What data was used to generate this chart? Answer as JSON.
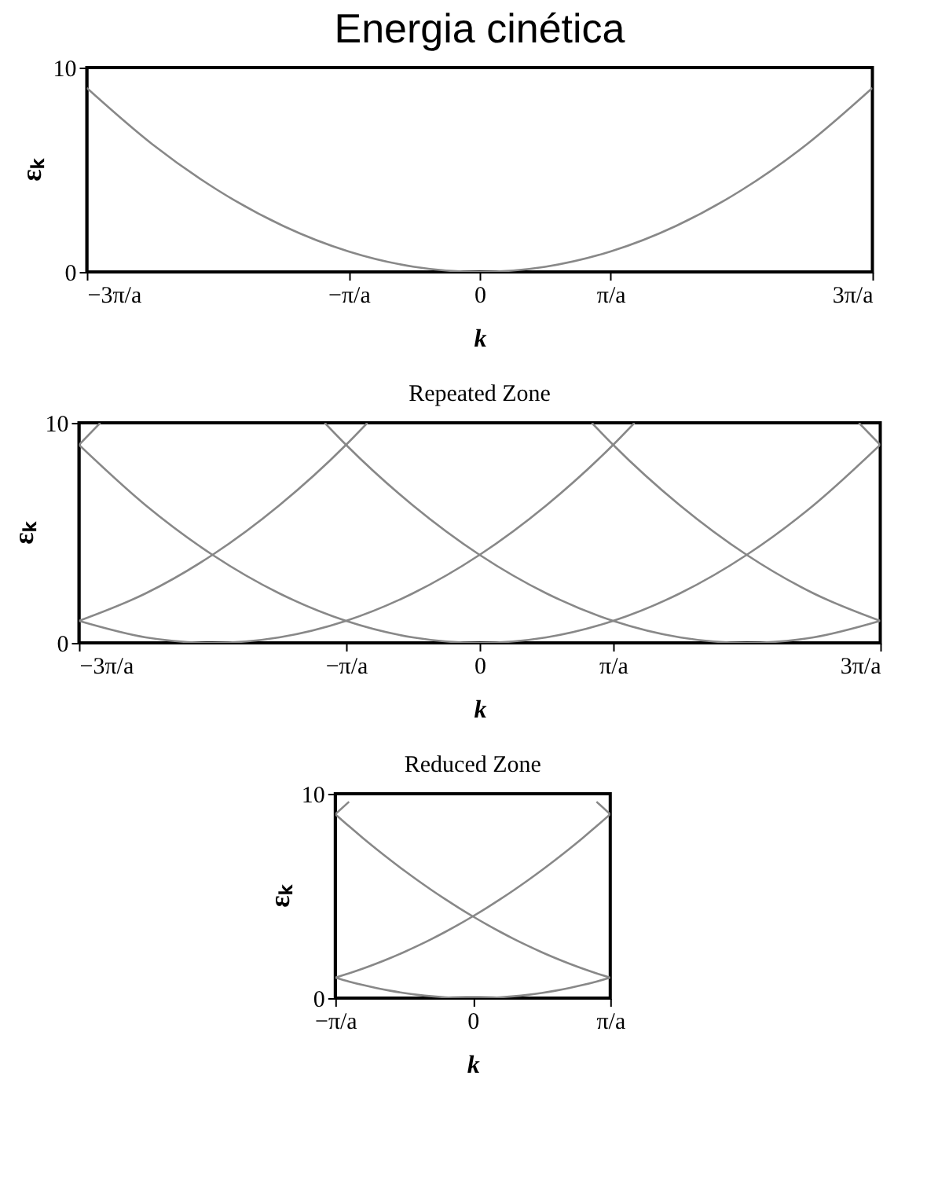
{
  "chart_data": [
    {
      "type": "line",
      "title": "Energia cinética",
      "xlabel": "k",
      "ylabel": "εₖ",
      "xlim": [
        -3,
        3
      ],
      "xticks": [
        {
          "value": -3,
          "label": "−3π/a"
        },
        {
          "value": -1,
          "label": "−π/a"
        },
        0,
        {
          "value": 1,
          "label": "π/a"
        },
        {
          "value": 3,
          "label": "3π/a"
        }
      ],
      "ylim": [
        0,
        10
      ],
      "yticks": [
        0,
        10
      ],
      "line_style": "solid",
      "series": [
        {
          "color": "#888888",
          "x": [
            -3,
            -2.5,
            -2,
            -1.5,
            -1,
            -0.5,
            0,
            0.5,
            1,
            1.5,
            2,
            2.5,
            3
          ],
          "values": [
            9,
            6.25,
            4,
            2.25,
            1,
            0.25,
            0,
            0.25,
            1,
            2.25,
            4,
            6.25,
            9
          ]
        }
      ]
    },
    {
      "type": "line",
      "title": "Repeated Zone",
      "xlabel": "k",
      "ylabel": "εₖ",
      "xlim": [
        -3,
        3
      ],
      "xticks": [
        {
          "value": -3,
          "label": "−3π/a"
        },
        {
          "value": -1,
          "label": "−π/a"
        },
        0,
        {
          "value": 1,
          "label": "π/a"
        },
        {
          "value": 3,
          "label": "3π/a"
        }
      ],
      "ylim": [
        0,
        10
      ],
      "yticks": [
        0,
        10
      ],
      "line_style": "solid",
      "series": [
        {
          "color": "#888888",
          "x": [
            -3,
            -2.84
          ],
          "values": [
            9,
            10
          ]
        },
        {
          "color": "#888888",
          "x": [
            -3,
            -2.5,
            -2,
            -1.5,
            -1,
            -0.84
          ],
          "values": [
            1,
            2.25,
            4,
            6.25,
            9,
            10
          ]
        },
        {
          "color": "#888888",
          "x": [
            -3,
            -2.5,
            -2,
            -1.5,
            -1,
            -0.5,
            0,
            0.5,
            1,
            1.16
          ],
          "values": [
            1,
            0.25,
            0,
            0.25,
            1,
            2.25,
            4,
            6.25,
            9,
            10
          ]
        },
        {
          "color": "#888888",
          "x": [
            -3,
            -2.5,
            -2,
            -1.5,
            -1,
            -0.5,
            0,
            0.5,
            1,
            1.5,
            2,
            2.5,
            3
          ],
          "values": [
            9,
            6.25,
            4,
            2.25,
            1,
            0.25,
            0,
            0.25,
            1,
            2.25,
            4,
            6.25,
            9
          ]
        },
        {
          "color": "#888888",
          "x": [
            -1.16,
            -1,
            -0.5,
            0,
            0.5,
            1,
            1.5,
            2,
            2.5,
            3
          ],
          "values": [
            10,
            9,
            6.25,
            4,
            2.25,
            1,
            0.25,
            0,
            0.25,
            1
          ]
        },
        {
          "color": "#888888",
          "x": [
            0.84,
            1,
            1.5,
            2,
            2.5,
            3
          ],
          "values": [
            10,
            9,
            6.25,
            4,
            2.25,
            1
          ]
        },
        {
          "color": "#888888",
          "x": [
            2.84,
            3
          ],
          "values": [
            10,
            9
          ]
        }
      ]
    },
    {
      "type": "line",
      "title": "Reduced Zone",
      "xlabel": "k",
      "ylabel": "εₖ",
      "categories": [
        "−π/a",
        null,
        null,
        null,
        null,
        null,
        null,
        null,
        null,
        null,
        "0",
        null,
        null,
        null,
        null,
        null,
        null,
        null,
        null,
        null,
        "π/a"
      ],
      "ylim": [
        0,
        10
      ],
      "yticks": [
        0,
        10
      ],
      "line_style": "solid",
      "series": [
        {
          "color": "#888888",
          "values": [
            1,
            0.81,
            0.64,
            0.49,
            0.36,
            0.25,
            0.16,
            0.09,
            0.04,
            0.01,
            0,
            0.01,
            0.04,
            0.09,
            0.16,
            0.25,
            0.36,
            0.49,
            0.64,
            0.81,
            1
          ]
        },
        {
          "color": "#888888",
          "values": [
            9,
            8.41,
            7.84,
            7.29,
            6.76,
            6.25,
            5.76,
            5.29,
            4.84,
            4.41,
            4,
            3.61,
            3.24,
            2.89,
            2.56,
            2.25,
            1.96,
            1.69,
            1.44,
            1.21,
            1
          ]
        },
        {
          "color": "#888888",
          "values": [
            1,
            1.21,
            1.44,
            1.69,
            1.96,
            2.25,
            2.56,
            2.89,
            3.24,
            3.61,
            4,
            4.41,
            4.84,
            5.29,
            5.76,
            6.25,
            6.76,
            7.29,
            7.84,
            8.41,
            9
          ]
        },
        {
          "color": "#888888",
          "values": [
            null,
            null,
            null,
            null,
            null,
            null,
            null,
            null,
            null,
            null,
            null,
            null,
            null,
            null,
            null,
            null,
            null,
            null,
            null,
            9.61,
            9
          ]
        },
        {
          "color": "#888888",
          "values": [
            9,
            9.61,
            null,
            null,
            null,
            null,
            null,
            null,
            null,
            null,
            null,
            null,
            null,
            null,
            null,
            null,
            null,
            null,
            null,
            null,
            null
          ]
        }
      ]
    }
  ]
}
